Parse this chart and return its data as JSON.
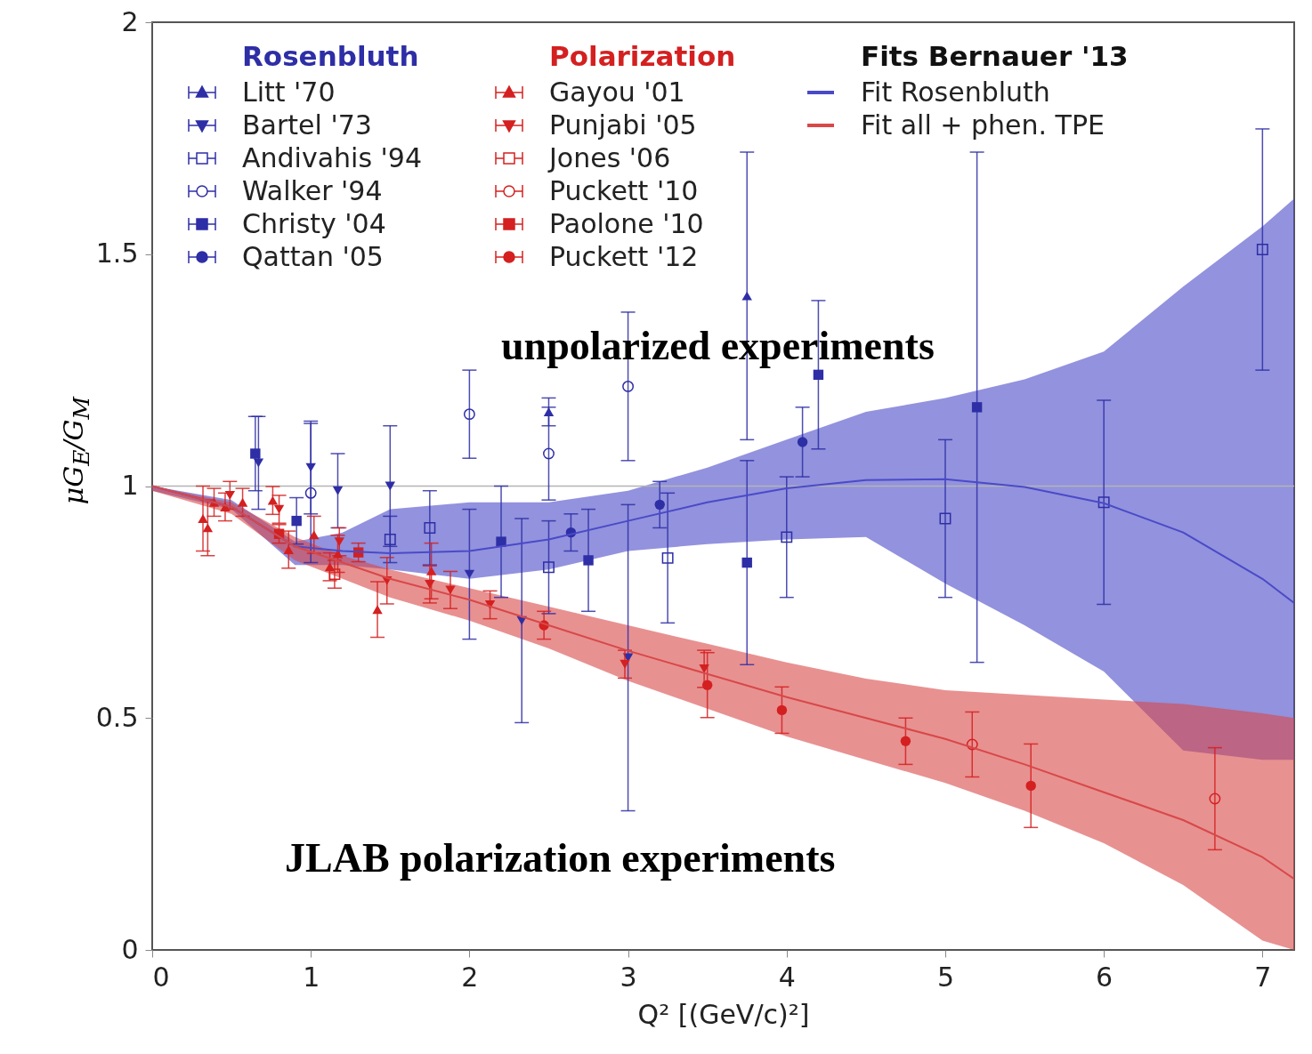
{
  "chart_data": {
    "type": "scatter",
    "xlabel": "Q² [(GeV/c)²]",
    "ylabel": "μG$_{E}$/G$_{M}$",
    "xlim": [
      0,
      7.2
    ],
    "xticks": [
      0,
      1,
      2,
      3,
      4,
      5,
      6,
      7
    ],
    "ylim": [
      0,
      2
    ],
    "yticks": [
      0,
      0.5,
      1,
      1.5,
      2
    ],
    "grid": false,
    "legend": "top left",
    "ref_lines": [
      {
        "axis": "y",
        "value": 1,
        "color": "#b4b4b4"
      }
    ],
    "annotations": [
      "Rosenbluth",
      "Polarization",
      "Fits Bernauer '13",
      "unpolarized experiments",
      "JLAB polarization experiments"
    ],
    "series": [
      {
        "name": "Litt '70",
        "type": "scatter",
        "marker": "triangle",
        "color": "#2e2ea6",
        "x": [
          2.5,
          3.75
        ],
        "values": [
          1.16,
          1.41
        ],
        "errors": [
          0.03,
          0.31
        ]
      },
      {
        "name": "Bartel '73",
        "type": "scatter",
        "marker": "triangle-down",
        "color": "#2e2ea6",
        "x": [
          0.67,
          1.0,
          1.17,
          1.5,
          2.0,
          2.33,
          3.0
        ],
        "values": [
          1.05,
          1.04,
          0.99,
          1.0,
          0.81,
          0.71,
          0.63
        ],
        "errors": [
          0.1,
          0.1,
          0.08,
          0.13,
          0.14,
          0.22,
          0.33
        ]
      },
      {
        "name": "Andivahis '94",
        "type": "scatter",
        "marker": "square-open",
        "color": "#2e2ea6",
        "x": [
          1.5,
          1.75,
          2.5,
          3.25,
          4.0,
          5.0,
          6.0,
          7.0
        ],
        "values": [
          0.885,
          0.91,
          0.825,
          0.845,
          0.89,
          0.93,
          0.965,
          1.51
        ],
        "errors": [
          0.05,
          0.08,
          0.1,
          0.14,
          0.13,
          0.17,
          0.22,
          0.26
        ]
      },
      {
        "name": "Walker '94",
        "type": "scatter",
        "marker": "circle-open",
        "color": "#2e2ea6",
        "x": [
          1.0,
          2.0,
          2.5,
          3.0
        ],
        "values": [
          0.985,
          1.155,
          1.07,
          1.215
        ],
        "errors": [
          0.15,
          0.095,
          0.1,
          0.16
        ]
      },
      {
        "name": "Christy '04",
        "type": "scatter",
        "marker": "square",
        "color": "#2e2ea6",
        "x": [
          0.65,
          0.91,
          2.2,
          2.75,
          3.75,
          4.2,
          5.2
        ],
        "values": [
          1.07,
          0.925,
          0.88,
          0.84,
          0.835,
          1.24,
          1.17
        ],
        "errors": [
          0.08,
          0.05,
          0.12,
          0.11,
          0.22,
          0.16,
          0.55
        ]
      },
      {
        "name": "Qattan '05",
        "type": "scatter",
        "marker": "circle",
        "color": "#2e2ea6",
        "x": [
          2.64,
          3.2,
          4.1
        ],
        "values": [
          0.9,
          0.96,
          1.095
        ],
        "errors": [
          0.04,
          0.05,
          0.075
        ]
      },
      {
        "name": "Gayou '01",
        "type": "scatter",
        "marker": "triangle",
        "color": "#d42020",
        "x": [
          0.32,
          0.35,
          0.39,
          0.46,
          0.57,
          0.76,
          0.86,
          1.02,
          1.12,
          1.17,
          1.42,
          1.76
        ],
        "values": [
          0.93,
          0.91,
          0.965,
          0.955,
          0.965,
          0.969,
          0.863,
          0.895,
          0.826,
          0.854,
          0.734,
          0.817
        ],
        "errors": [
          0.07,
          0.06,
          0.03,
          0.03,
          0.03,
          0.03,
          0.04,
          0.04,
          0.03,
          0.04,
          0.06,
          0.06
        ]
      },
      {
        "name": "Punjabi '05",
        "type": "scatter",
        "marker": "triangle-down",
        "color": "#d42020",
        "x": [
          0.49,
          0.8,
          1.18,
          1.48,
          1.75,
          1.88,
          2.13,
          2.98,
          3.48
        ],
        "values": [
          0.98,
          0.95,
          0.88,
          0.796,
          0.788,
          0.776,
          0.744,
          0.616,
          0.606
        ],
        "errors": [
          0.03,
          0.03,
          0.03,
          0.05,
          0.04,
          0.04,
          0.03,
          0.03,
          0.04
        ]
      },
      {
        "name": "Jones '06",
        "type": "scatter",
        "marker": "square-open",
        "color": "#d42020",
        "x": [
          1.15
        ],
        "values": [
          0.81
        ],
        "errors": [
          0.03
        ]
      },
      {
        "name": "Puckett '10",
        "type": "scatter",
        "marker": "circle-open",
        "color": "#d42020",
        "x": [
          5.17,
          6.7
        ],
        "values": [
          0.443,
          0.326
        ],
        "errors": [
          0.07,
          0.11
        ]
      },
      {
        "name": "Paolone '10",
        "type": "scatter",
        "marker": "square",
        "color": "#d42020",
        "x": [
          0.8,
          1.3
        ],
        "values": [
          0.897,
          0.857
        ],
        "errors": [
          0.02,
          0.02
        ]
      },
      {
        "name": "Puckett '12",
        "type": "scatter",
        "marker": "circle",
        "color": "#d42020",
        "x": [
          2.47,
          3.5,
          3.97,
          4.75,
          5.54
        ],
        "values": [
          0.7,
          0.571,
          0.517,
          0.45,
          0.354
        ],
        "errors": [
          0.03,
          0.07,
          0.05,
          0.05,
          0.09
        ]
      },
      {
        "name": "Fit Rosenbluth",
        "type": "line",
        "color": "#4a4ac8",
        "x": [
          0,
          0.5,
          0.9,
          1.2,
          1.5,
          2.0,
          2.5,
          3.0,
          3.5,
          4.0,
          4.5,
          5.0,
          5.5,
          6.0,
          6.5,
          7.0,
          7.2
        ],
        "values": [
          1.0,
          0.955,
          0.87,
          0.86,
          0.855,
          0.86,
          0.885,
          0.925,
          0.965,
          0.995,
          1.013,
          1.015,
          0.998,
          0.963,
          0.9,
          0.8,
          0.748
        ],
        "lower": [
          0.99,
          0.95,
          0.83,
          0.83,
          0.82,
          0.8,
          0.82,
          0.86,
          0.875,
          0.885,
          0.89,
          0.79,
          0.7,
          0.6,
          0.43,
          0.41,
          0.41
        ],
        "upper": [
          1.0,
          0.97,
          0.88,
          0.9,
          0.95,
          0.965,
          0.965,
          0.99,
          1.04,
          1.1,
          1.16,
          1.19,
          1.23,
          1.29,
          1.43,
          1.56,
          1.62
        ]
      },
      {
        "name": "Fit all + phen. TPE",
        "type": "line",
        "color": "#d84848",
        "x": [
          0,
          0.5,
          0.9,
          1.2,
          1.5,
          2.0,
          2.5,
          3.0,
          3.5,
          4.0,
          4.5,
          5.0,
          5.5,
          6.0,
          6.5,
          7.0,
          7.2
        ],
        "values": [
          1.0,
          0.955,
          0.87,
          0.835,
          0.8,
          0.755,
          0.7,
          0.645,
          0.595,
          0.545,
          0.5,
          0.455,
          0.4,
          0.34,
          0.28,
          0.2,
          0.153
        ],
        "lower": [
          0.99,
          0.94,
          0.84,
          0.8,
          0.76,
          0.71,
          0.65,
          0.58,
          0.52,
          0.46,
          0.41,
          0.36,
          0.3,
          0.23,
          0.14,
          0.02,
          0
        ],
        "upper": [
          1.0,
          0.965,
          0.89,
          0.85,
          0.82,
          0.78,
          0.74,
          0.7,
          0.66,
          0.62,
          0.585,
          0.56,
          0.55,
          0.54,
          0.53,
          0.51,
          0.5
        ]
      }
    ]
  }
}
